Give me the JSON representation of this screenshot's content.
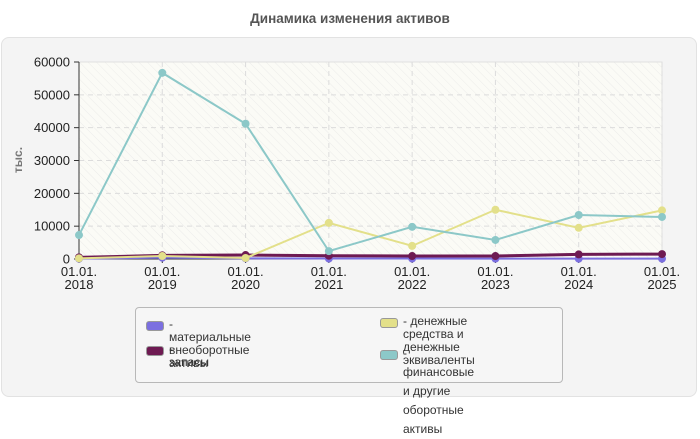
{
  "title": "Динамика изменения активов",
  "chart_data": {
    "type": "line",
    "title": "Динамика изменения активов",
    "xlabel": "",
    "ylabel": "тыс.",
    "ylim": [
      0,
      60000
    ],
    "yticks": [
      0,
      10000,
      20000,
      30000,
      40000,
      50000,
      60000
    ],
    "ytick_labels": [
      "0",
      "10000",
      "20000",
      "30000",
      "40000",
      "50000",
      "60000"
    ],
    "categories": [
      "01.01.\n2018",
      "01.01.\n2019",
      "01.01.\n2020",
      "01.01.\n2021",
      "01.01.\n2022",
      "01.01.\n2023",
      "01.01.\n2024",
      "01.01.\n2025"
    ],
    "category_lines": [
      [
        "01.01.",
        "2018"
      ],
      [
        "01.01.",
        "2019"
      ],
      [
        "01.01.",
        "2020"
      ],
      [
        "01.01.",
        "2021"
      ],
      [
        "01.01.",
        "2022"
      ],
      [
        "01.01.",
        "2023"
      ],
      [
        "01.01.",
        "2024"
      ],
      [
        "01.01.",
        "2025"
      ]
    ],
    "grid": true,
    "legend_position": "bottom",
    "series": [
      {
        "name": "материальные внеоборотные активы",
        "color": "#7b6fe0",
        "values": [
          100,
          400,
          200,
          150,
          150,
          100,
          100,
          100
        ]
      },
      {
        "name": "запасы",
        "color": "#6e1a52",
        "values": [
          500,
          1100,
          1200,
          1000,
          900,
          900,
          1400,
          1500
        ]
      },
      {
        "name": "денежные средства и денежные эквиваленты",
        "color": "#e3e08a",
        "values": [
          200,
          900,
          300,
          11000,
          4000,
          15000,
          9500,
          14800
        ]
      },
      {
        "name": "финансовые и другие оборотные активы",
        "color": "#8cc8c8",
        "values": [
          7300,
          56700,
          41200,
          2400,
          9800,
          5800,
          13400,
          12800
        ]
      }
    ]
  },
  "legend": {
    "items": [
      {
        "label": "материальные внеоборотные\nактивы",
        "color": "#7b6fe0"
      },
      {
        "label": "запасы",
        "color": "#6e1a52"
      },
      {
        "label": "денежные средства и\nденежные эквиваленты",
        "color": "#e3e08a"
      },
      {
        "label": "финансовые и другие\nоборотные активы",
        "color": "#8cc8c8"
      }
    ]
  }
}
